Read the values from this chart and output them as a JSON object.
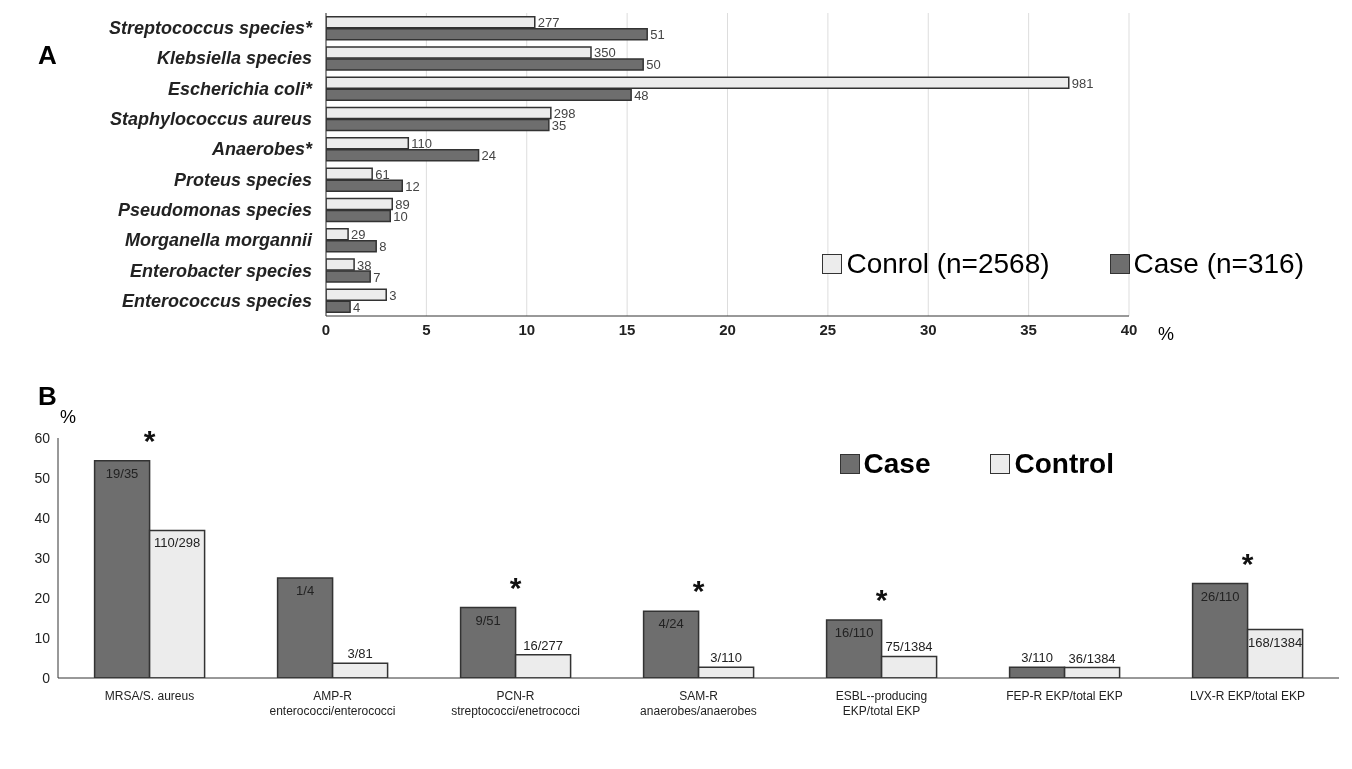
{
  "chart_data": [
    {
      "type": "bar",
      "title": "A",
      "orientation": "horizontal",
      "xlabel": "%",
      "categories": [
        "Streptococcus species*",
        "Klebsiella species",
        "Escherichia coli*",
        "Staphylococcus aureus",
        "Anaerobes*",
        "Proteus species",
        "Pseudomonas species",
        "Morganella morgannii",
        "Enterobacter species",
        "Enterococcus species"
      ],
      "series": [
        {
          "name": "Conrol (n=2568)",
          "color": "#ececec",
          "values": [
            10.4,
            13.2,
            37,
            11.2,
            4.1,
            2.3,
            3.3,
            1.1,
            1.4,
            3.0
          ]
        },
        {
          "name": "Case (n=316)",
          "color": "#6e6e6e",
          "values": [
            16.0,
            15.8,
            15.2,
            11.1,
            7.6,
            3.8,
            3.2,
            2.5,
            2.2,
            1.2
          ]
        }
      ],
      "xlim": [
        0,
        40
      ],
      "xticks": [
        0,
        5,
        10,
        15,
        20,
        25,
        30,
        35,
        40
      ],
      "grid": "x",
      "legend": "right",
      "annotations": [
        {
          "text": "277",
          "x": 10.4,
          "y": "Streptococcus species*"
        },
        {
          "text": "51",
          "x": 16.0,
          "y": "Streptococcus species*"
        },
        {
          "text": "350",
          "x": 13.2,
          "y": "Klebsiella species"
        },
        {
          "text": "50",
          "x": 15.8,
          "y": "Klebsiella species"
        },
        {
          "text": "981",
          "x": 37,
          "y": "Escherichia coli*"
        },
        {
          "text": "48",
          "x": 15.2,
          "y": "Escherichia coli*"
        },
        {
          "text": "298",
          "x": 11.2,
          "y": "Staphylococcus aureus"
        },
        {
          "text": "35",
          "x": 11.1,
          "y": "Staphylococcus aureus"
        },
        {
          "text": "110",
          "x": 4.1,
          "y": "Anaerobes*"
        },
        {
          "text": "24",
          "x": 7.6,
          "y": "Anaerobes*"
        },
        {
          "text": "61",
          "x": 2.3,
          "y": "Proteus species"
        },
        {
          "text": "12",
          "x": 3.8,
          "y": "Proteus species"
        },
        {
          "text": "89",
          "x": 3.3,
          "y": "Pseudomonas species"
        },
        {
          "text": "10",
          "x": 3.2,
          "y": "Pseudomonas species"
        },
        {
          "text": "29",
          "x": 1.1,
          "y": "Morganella morgannii"
        },
        {
          "text": "8",
          "x": 2.5,
          "y": "Morganella morgannii"
        },
        {
          "text": "38",
          "x": 1.4,
          "y": "Enterobacter species"
        },
        {
          "text": "7",
          "x": 2.2,
          "y": "Enterobacter species"
        },
        {
          "text": "3",
          "x": 3.0,
          "y": "Enterococcus species"
        },
        {
          "text": "4",
          "x": 1.2,
          "y": "Enterococcus species"
        }
      ]
    },
    {
      "type": "bar",
      "title": "B",
      "ylabel": "%",
      "categories": [
        "MRSA/S. aureus",
        "AMP-R\nenterococci/enterococci",
        "PCN-R\nstreptococci/enetrococci",
        "SAM-R\nanaerobes/anaerobes",
        "ESBL--producing\nEKP/total EKP",
        "FEP-R EKP/total EKP",
        "LVX-R EKP/total EKP"
      ],
      "series": [
        {
          "name": "Case",
          "color": "#6e6e6e",
          "values": [
            54.3,
            25,
            17.6,
            16.7,
            14.5,
            2.7,
            23.6
          ]
        },
        {
          "name": "Control",
          "color": "#ececec",
          "values": [
            36.9,
            3.7,
            5.8,
            2.7,
            5.4,
            2.6,
            12.1
          ]
        }
      ],
      "ylim": [
        0,
        60
      ],
      "yticks": [
        0,
        10,
        20,
        30,
        40,
        50,
        60
      ],
      "legend": "top right",
      "annotations": [
        {
          "text": "19/35",
          "x": "MRSA/S. aureus",
          "y": 54.3
        },
        {
          "text": "110/298",
          "x": "MRSA/S. aureus",
          "y": 36.9
        },
        {
          "text": "1/4",
          "x": "AMP-R\nenterococci/enterococci",
          "y": 25
        },
        {
          "text": "3/81",
          "x": "AMP-R\nenterococci/enterococci",
          "y": 3.7
        },
        {
          "text": "9/51",
          "x": "PCN-R\nstreptococci/enetrococci",
          "y": 17.6
        },
        {
          "text": "16/277",
          "x": "PCN-R\nstreptococci/enetrococci",
          "y": 5.8
        },
        {
          "text": "4/24",
          "x": "SAM-R\nanaerobes/anaerobes",
          "y": 16.7
        },
        {
          "text": "3/110",
          "x": "SAM-R\nanaerobes/anaerobes",
          "y": 2.7
        },
        {
          "text": "16/110",
          "x": "ESBL--producing\nEKP/total EKP",
          "y": 14.5
        },
        {
          "text": "75/1384",
          "x": "ESBL--producing\nEKP/total EKP",
          "y": 5.4
        },
        {
          "text": "3/110",
          "x": "FEP-R EKP/total EKP",
          "y": 2.7
        },
        {
          "text": "36/1384",
          "x": "FEP-R EKP/total EKP",
          "y": 2.6
        },
        {
          "text": "26/110",
          "x": "LVX-R EKP/total EKP",
          "y": 23.6
        },
        {
          "text": "168/1384",
          "x": "LVX-R EKP/total EKP",
          "y": 12.1
        },
        {
          "text": "*",
          "x": "MRSA/S. aureus",
          "y": 54.3
        },
        {
          "text": "*",
          "x": "PCN-R\nstreptococci/enetrococci",
          "y": 17.6
        },
        {
          "text": "*",
          "x": "SAM-R\nanaerobes/anaerobes",
          "y": 16.7
        },
        {
          "text": "*",
          "x": "ESBL--producing\nEKP/total EKP",
          "y": 14.5
        },
        {
          "text": "*",
          "x": "LVX-R EKP/total EKP",
          "y": 23.6
        }
      ]
    }
  ]
}
